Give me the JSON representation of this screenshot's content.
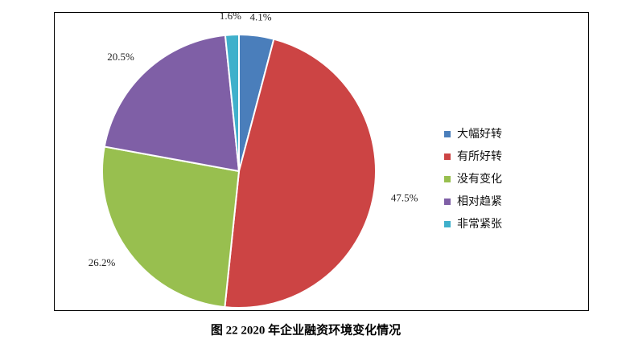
{
  "chart_data": {
    "type": "pie",
    "title": "图 22 2020 年企业融资环境变化情况",
    "categories": [
      "大幅好转",
      "有所好转",
      "没有变化",
      "相对趋紧",
      "非常紧张"
    ],
    "values": [
      4.1,
      47.5,
      26.2,
      20.5,
      1.6
    ],
    "value_labels": [
      "4.1%",
      "47.5%",
      "26.2%",
      "20.5%",
      "1.6%"
    ],
    "colors": [
      "#4a7ebb",
      "#cc4444",
      "#98bf4f",
      "#7f5fa6",
      "#3fb0cb"
    ],
    "legend": "right"
  }
}
